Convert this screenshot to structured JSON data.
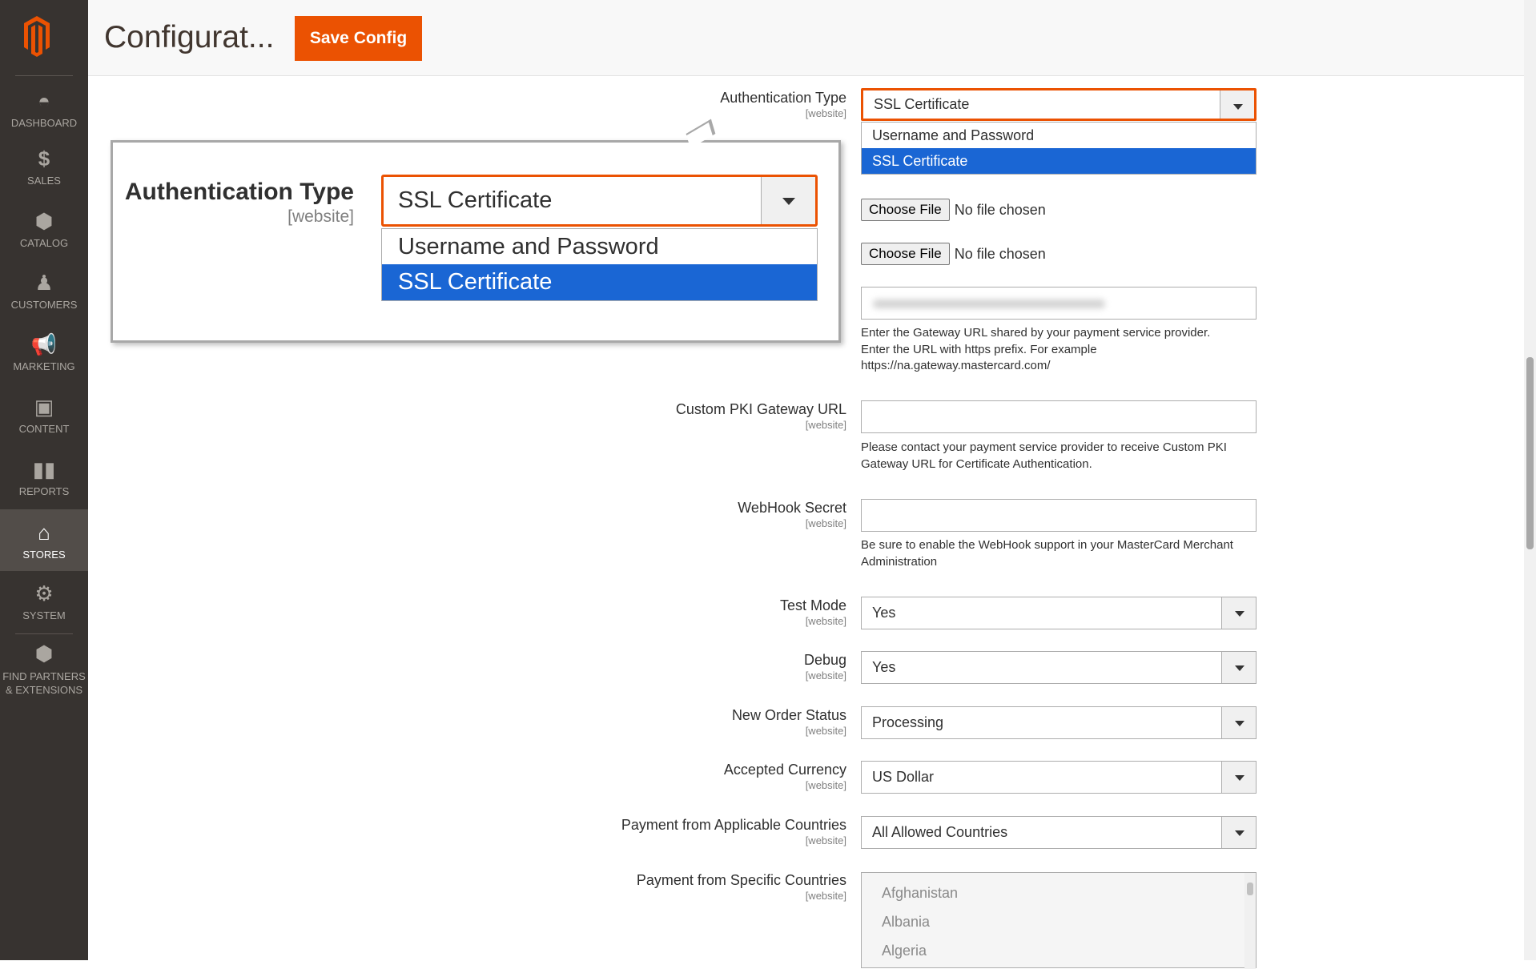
{
  "sidebar": {
    "items": [
      {
        "label": "DASHBOARD",
        "icon": "dashboard-icon"
      },
      {
        "label": "SALES",
        "icon": "dollar-icon"
      },
      {
        "label": "CATALOG",
        "icon": "box-icon"
      },
      {
        "label": "CUSTOMERS",
        "icon": "person-icon"
      },
      {
        "label": "MARKETING",
        "icon": "megaphone-icon"
      },
      {
        "label": "CONTENT",
        "icon": "content-icon"
      },
      {
        "label": "REPORTS",
        "icon": "bar-chart-icon"
      },
      {
        "label": "STORES",
        "icon": "store-icon",
        "active": true
      },
      {
        "label": "SYSTEM",
        "icon": "gear-icon"
      },
      {
        "label1": "FIND PARTNERS",
        "label2": "& EXTENSIONS",
        "icon": "cube-icon"
      }
    ]
  },
  "header": {
    "title": "Configurat...",
    "save_label": "Save Config"
  },
  "colors": {
    "accent": "#eb5202",
    "highlight": "#1a66d4",
    "sidebar": "#373330"
  },
  "callout": {
    "label": "Authentication Type",
    "scope": "[website]",
    "value": "SSL Certificate",
    "options": [
      "Username and Password",
      "SSL Certificate"
    ]
  },
  "form": {
    "auth": {
      "label": "Authentication Type",
      "scope": "[website]",
      "value": "SSL Certificate",
      "options": [
        "Username and Password",
        "SSL Certificate"
      ]
    },
    "file1": {
      "button": "Choose File",
      "status": "No file chosen"
    },
    "file2": {
      "button": "Choose File",
      "status": "No file chosen"
    },
    "gateway_help": [
      "Enter the Gateway URL shared by your payment service provider.",
      "Enter the URL with https prefix. For example",
      "https://na.gateway.mastercard.com/"
    ],
    "pki": {
      "label": "Custom PKI Gateway URL",
      "scope": "[website]",
      "help": [
        "Please contact your payment service provider to receive Custom PKI",
        "Gateway URL for Certificate Authentication."
      ]
    },
    "webhook": {
      "label": "WebHook Secret",
      "scope": "[website]",
      "help": [
        "Be sure to enable the WebHook support in your MasterCard Merchant",
        "Administration"
      ]
    },
    "test_mode": {
      "label": "Test Mode",
      "scope": "[website]",
      "value": "Yes"
    },
    "debug": {
      "label": "Debug",
      "scope": "[website]",
      "value": "Yes"
    },
    "order_status": {
      "label": "New Order Status",
      "scope": "[website]",
      "value": "Processing"
    },
    "currency": {
      "label": "Accepted Currency",
      "scope": "[website]",
      "value": "US Dollar"
    },
    "applicable": {
      "label": "Payment from Applicable Countries",
      "scope": "[website]",
      "value": "All Allowed Countries"
    },
    "specific": {
      "label": "Payment from Specific Countries",
      "scope": "[website]",
      "options": [
        "Afghanistan",
        "Albania",
        "Algeria"
      ]
    }
  }
}
